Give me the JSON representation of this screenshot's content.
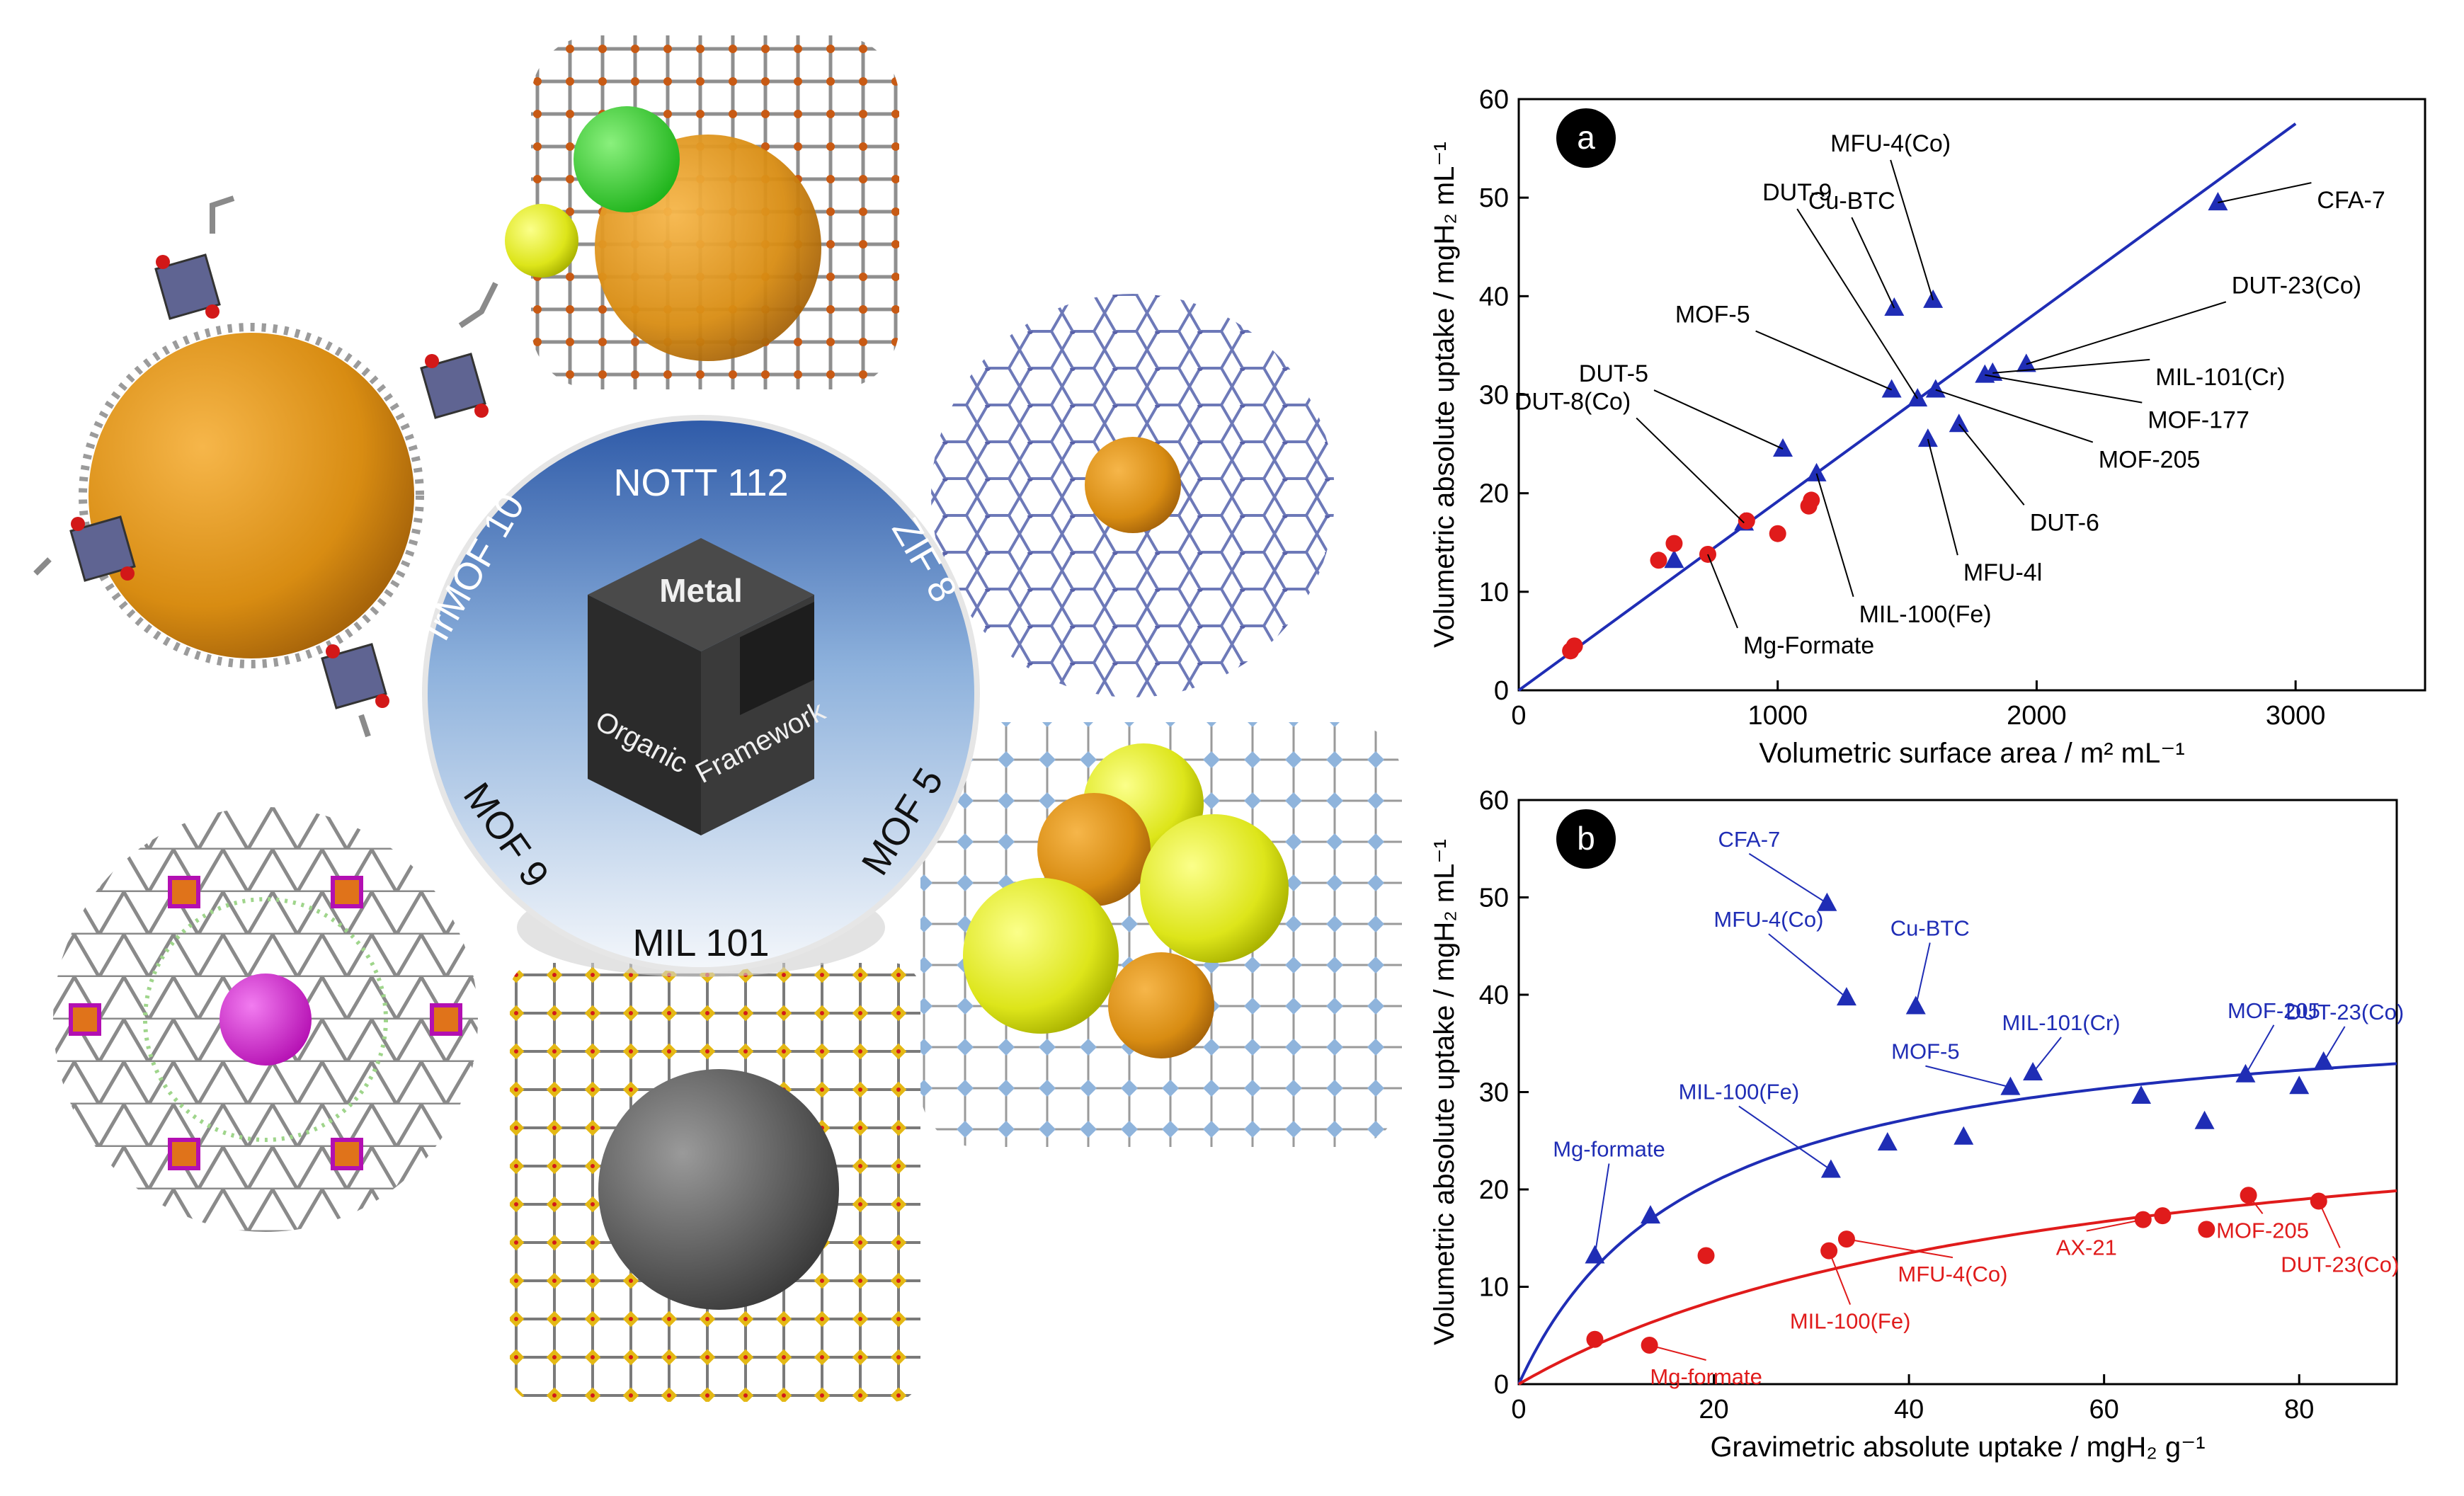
{
  "figure": {
    "ring_labels": [
      "NOTT 112",
      "ZIF 8",
      "MOF 5",
      "MIL 101",
      "MOF 9",
      "IrMOF 10"
    ],
    "cube_labels": {
      "top": "Metal",
      "left": "Organic",
      "right": "Framework"
    }
  },
  "chart_data": [
    {
      "type": "scatter",
      "panel_label": "a",
      "xlabel": "Volumetric surface area / m² mL⁻¹",
      "ylabel": "Volumetric absolute uptake / mgH₂ mL⁻¹",
      "xlim": [
        0,
        3500
      ],
      "ylim": [
        0,
        60
      ],
      "xticks": [
        0,
        1000,
        2000,
        3000
      ],
      "yticks": [
        0,
        10,
        20,
        30,
        40,
        50,
        60
      ],
      "grid": false,
      "colors": {
        "blue": "#1f2db5",
        "red": "#e01b1b"
      },
      "series": [
        {
          "marker": "triangle",
          "color": "#1f2db5",
          "points": [
            [
              600,
              13.2
            ],
            [
              870,
              17.0
            ],
            [
              1020,
              24.5
            ],
            [
              1150,
              22.0
            ],
            [
              1440,
              30.5
            ],
            [
              1450,
              38.8
            ],
            [
              1540,
              29.6
            ],
            [
              1580,
              25.5
            ],
            [
              1600,
              39.6
            ],
            [
              1610,
              30.5
            ],
            [
              1700,
              27.0
            ],
            [
              1800,
              32.0
            ],
            [
              1830,
              32.2
            ],
            [
              1960,
              33.1
            ],
            [
              2700,
              49.5
            ]
          ]
        },
        {
          "marker": "circle",
          "color": "#e01b1b",
          "points": [
            [
              200,
              4.0
            ],
            [
              215,
              4.5
            ],
            [
              540,
              13.2
            ],
            [
              600,
              14.9
            ],
            [
              730,
              13.8
            ],
            [
              880,
              17.2
            ],
            [
              1000,
              15.9
            ],
            [
              1120,
              18.7
            ],
            [
              1130,
              19.3
            ]
          ]
        }
      ],
      "fit_line": {
        "color": "#1f2db5",
        "x": [
          0,
          3000
        ],
        "y": [
          0,
          57.5
        ]
      },
      "annotations": [
        {
          "text": "MFU-4(Co)",
          "point": [
            1600,
            39.6
          ]
        },
        {
          "text": "Cu-BTC",
          "point": [
            1450,
            38.8
          ]
        },
        {
          "text": "CFA-7",
          "point": [
            2700,
            49.5
          ]
        },
        {
          "text": "DUT-9",
          "point": [
            1540,
            29.6
          ]
        },
        {
          "text": "DUT-23(Co)",
          "point": [
            1960,
            33.1
          ]
        },
        {
          "text": "MOF-5",
          "point": [
            1440,
            30.5
          ]
        },
        {
          "text": "MIL-101(Cr)",
          "point": [
            1830,
            32.2
          ]
        },
        {
          "text": "DUT-5",
          "point": [
            1020,
            24.5
          ]
        },
        {
          "text": "MOF-177",
          "point": [
            1800,
            32.0
          ]
        },
        {
          "text": "DUT-8(Co)",
          "point": [
            870,
            17.0
          ]
        },
        {
          "text": "MOF-205",
          "point": [
            1610,
            30.5
          ]
        },
        {
          "text": "DUT-6",
          "point": [
            1700,
            27.0
          ]
        },
        {
          "text": "MFU-4l",
          "point": [
            1580,
            25.5
          ]
        },
        {
          "text": "MIL-100(Fe)",
          "point": [
            1150,
            22.0
          ]
        },
        {
          "text": "Mg-Formate",
          "point": [
            730,
            13.8
          ]
        }
      ]
    },
    {
      "type": "scatter",
      "panel_label": "b",
      "xlabel": "Gravimetric absolute uptake / mgH₂ g⁻¹",
      "ylabel": "Volumetric absolute uptake / mgH₂ mL⁻¹",
      "xlim": [
        0,
        90
      ],
      "ylim": [
        0,
        60
      ],
      "xticks": [
        0,
        20,
        40,
        60,
        80
      ],
      "yticks": [
        0,
        10,
        20,
        30,
        40,
        50,
        60
      ],
      "grid": false,
      "series": [
        {
          "marker": "triangle",
          "color": "#1f2db5",
          "points": [
            [
              7.8,
              13.2
            ],
            [
              13.5,
              17.3
            ],
            [
              31.6,
              49.4
            ],
            [
              33.6,
              39.7
            ],
            [
              32.0,
              22.0
            ],
            [
              37.8,
              24.8
            ],
            [
              40.7,
              38.8
            ],
            [
              45.6,
              25.4
            ],
            [
              50.4,
              30.5
            ],
            [
              52.7,
              32.0
            ],
            [
              63.8,
              29.6
            ],
            [
              70.3,
              27.0
            ],
            [
              74.5,
              31.8
            ],
            [
              80.0,
              30.6
            ],
            [
              82.5,
              33.1
            ]
          ]
        },
        {
          "marker": "circle",
          "color": "#e01b1b",
          "points": [
            [
              7.8,
              4.6
            ],
            [
              13.4,
              4.0
            ],
            [
              19.2,
              13.2
            ],
            [
              31.8,
              13.7
            ],
            [
              33.6,
              14.9
            ],
            [
              64.0,
              16.9
            ],
            [
              66.0,
              17.3
            ],
            [
              70.5,
              15.9
            ],
            [
              74.8,
              19.4
            ],
            [
              82.0,
              18.8
            ]
          ]
        }
      ],
      "fits": [
        {
          "color": "#1f2db5",
          "ymax": 39.5,
          "k": 18.0
        },
        {
          "color": "#e01b1b",
          "ymax": 32.0,
          "k": 55.0
        }
      ],
      "blue_labels": [
        {
          "text": "CFA-7",
          "point": [
            31.6,
            49.4
          ]
        },
        {
          "text": "MFU-4(Co)",
          "point": [
            33.6,
            39.7
          ]
        },
        {
          "text": "Cu-BTC",
          "point": [
            40.7,
            38.8
          ]
        },
        {
          "text": "MIL-101(Cr)",
          "point": [
            52.7,
            32.0
          ]
        },
        {
          "text": "MOF-205",
          "point": [
            74.5,
            31.8
          ]
        },
        {
          "text": "DUT-23(Co)",
          "point": [
            82.5,
            33.1
          ]
        },
        {
          "text": "MOF-5",
          "point": [
            50.4,
            30.5
          ]
        },
        {
          "text": "MIL-100(Fe)",
          "point": [
            32.0,
            22.0
          ]
        },
        {
          "text": "Mg-formate",
          "point": [
            7.8,
            13.2
          ]
        }
      ],
      "red_labels": [
        {
          "text": "AX-21",
          "point": [
            64.0,
            16.9
          ]
        },
        {
          "text": "MOF-205",
          "point": [
            74.8,
            19.4
          ]
        },
        {
          "text": "DUT-23(Co)",
          "point": [
            82.0,
            18.8
          ]
        },
        {
          "text": "MFU-4(Co)",
          "point": [
            33.6,
            14.9
          ]
        },
        {
          "text": "MIL-100(Fe)",
          "point": [
            31.8,
            13.7
          ]
        },
        {
          "text": "Mg-formate",
          "point": [
            13.4,
            4.0
          ]
        }
      ]
    }
  ]
}
